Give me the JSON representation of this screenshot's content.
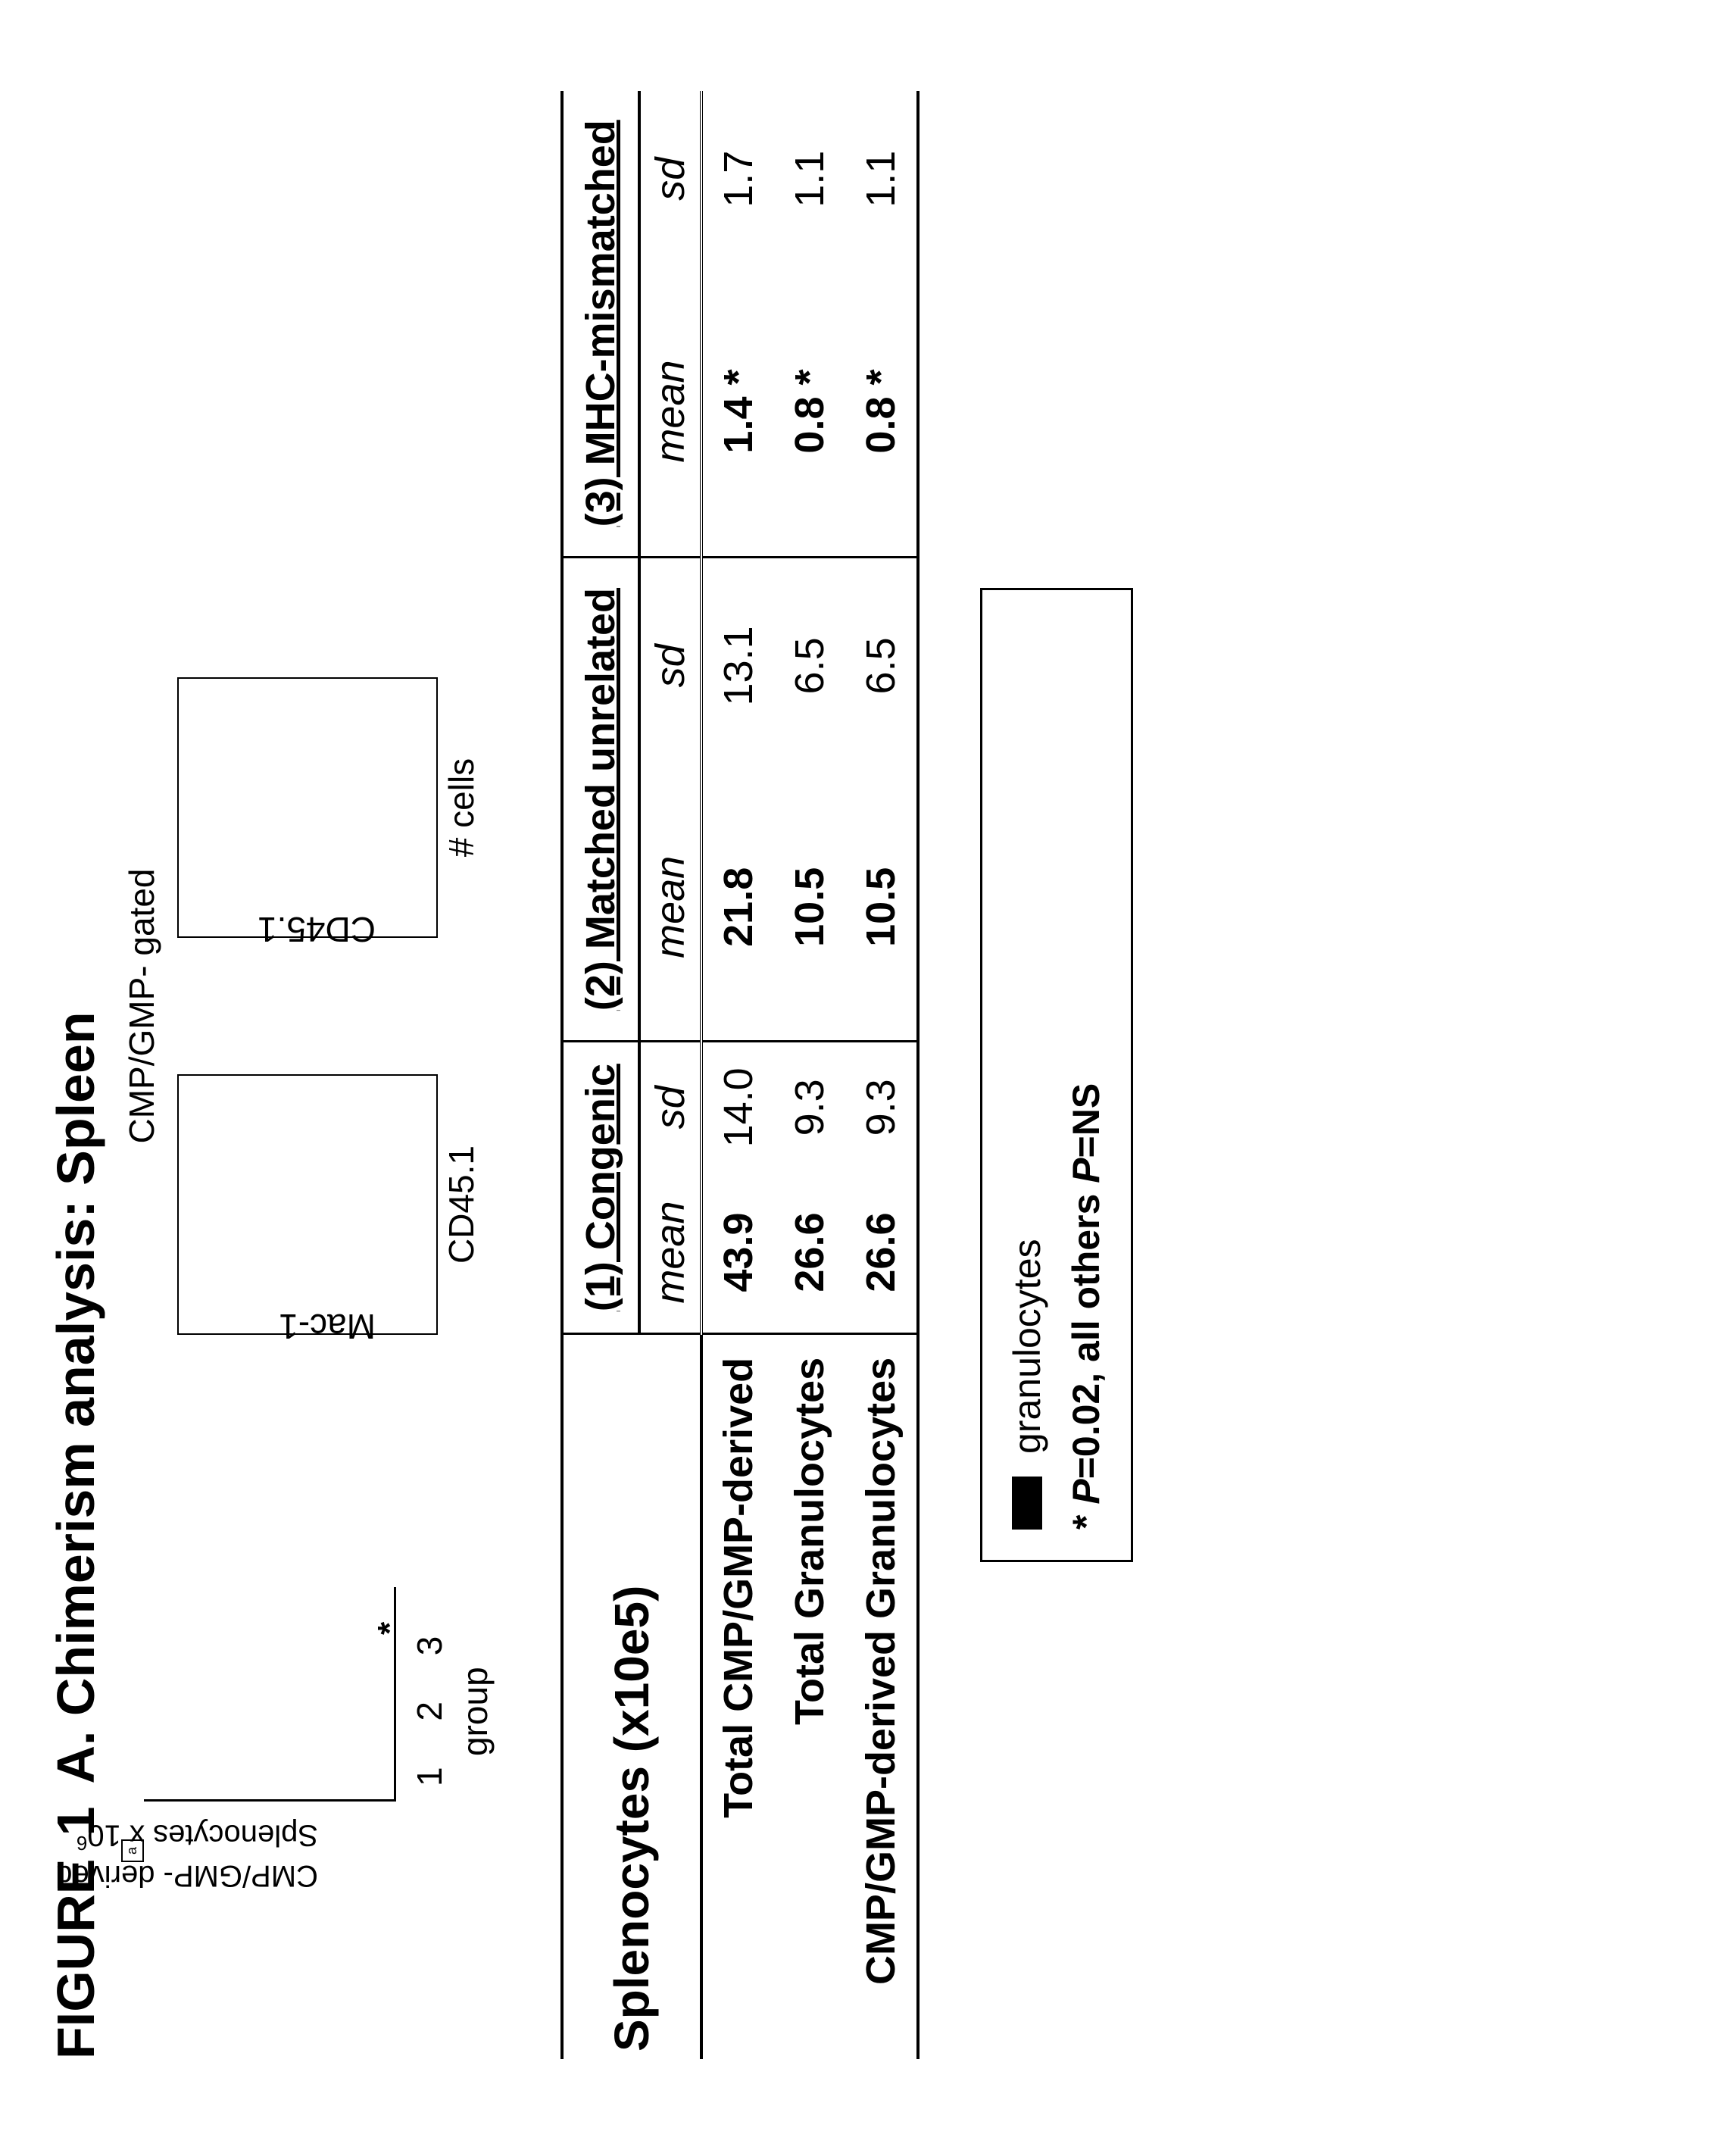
{
  "figure_label_prefix": "FIGURE",
  "figure_number": "1",
  "panel_letter": "A.",
  "title": "Chimerism analysis: Spleen",
  "panel_a": {
    "box_letter": "a",
    "y_outer_line1": "CMP/GMP- derived",
    "y_inner_line": "Splenocytes x 10",
    "y_inner_sup": "6",
    "xticks": "1 2 3",
    "xlabel": "group",
    "star": "*"
  },
  "panel_b": {
    "title": "CMP/GMP- gated",
    "left_plot": {
      "ylabel": "Mac-1",
      "xlabel": "CD45.1"
    },
    "right_plot": {
      "ylabel": "CD45.1",
      "xlabel": "# cells"
    }
  },
  "table": {
    "title": "Splenocytes (x10e5)",
    "groups": [
      {
        "label": "(1) Congenic"
      },
      {
        "label": "(2) Matched unrelated"
      },
      {
        "label": "(3) MHC-mismatched"
      }
    ],
    "subheaders": {
      "mean": "mean",
      "sd": "sd"
    },
    "rows": [
      {
        "label": "Total CMP/GMP-derived",
        "cells": [
          {
            "mean": "43.9",
            "sd": "14.0"
          },
          {
            "mean": "21.8",
            "sd": "13.1"
          },
          {
            "mean": "1.4 *",
            "sd": "1.7"
          }
        ]
      },
      {
        "label": "Total Granulocytes",
        "cells": [
          {
            "mean": "26.6",
            "sd": "9.3"
          },
          {
            "mean": "10.5",
            "sd": "6.5"
          },
          {
            "mean": "0.8 *",
            "sd": "1.1"
          }
        ]
      },
      {
        "label": "CMP/GMP-derived Granulocytes",
        "cells": [
          {
            "mean": "26.6",
            "sd": "9.3"
          },
          {
            "mean": "10.5",
            "sd": "6.5"
          },
          {
            "mean": "0.8 *",
            "sd": "1.1"
          }
        ]
      }
    ]
  },
  "legend": {
    "swatch_label": "granulocytes",
    "footnote_prefix": "* ",
    "footnote_p1": "P",
    "footnote_mid": "=0.02, all others ",
    "footnote_p2": "P",
    "footnote_end": "=NS"
  }
}
